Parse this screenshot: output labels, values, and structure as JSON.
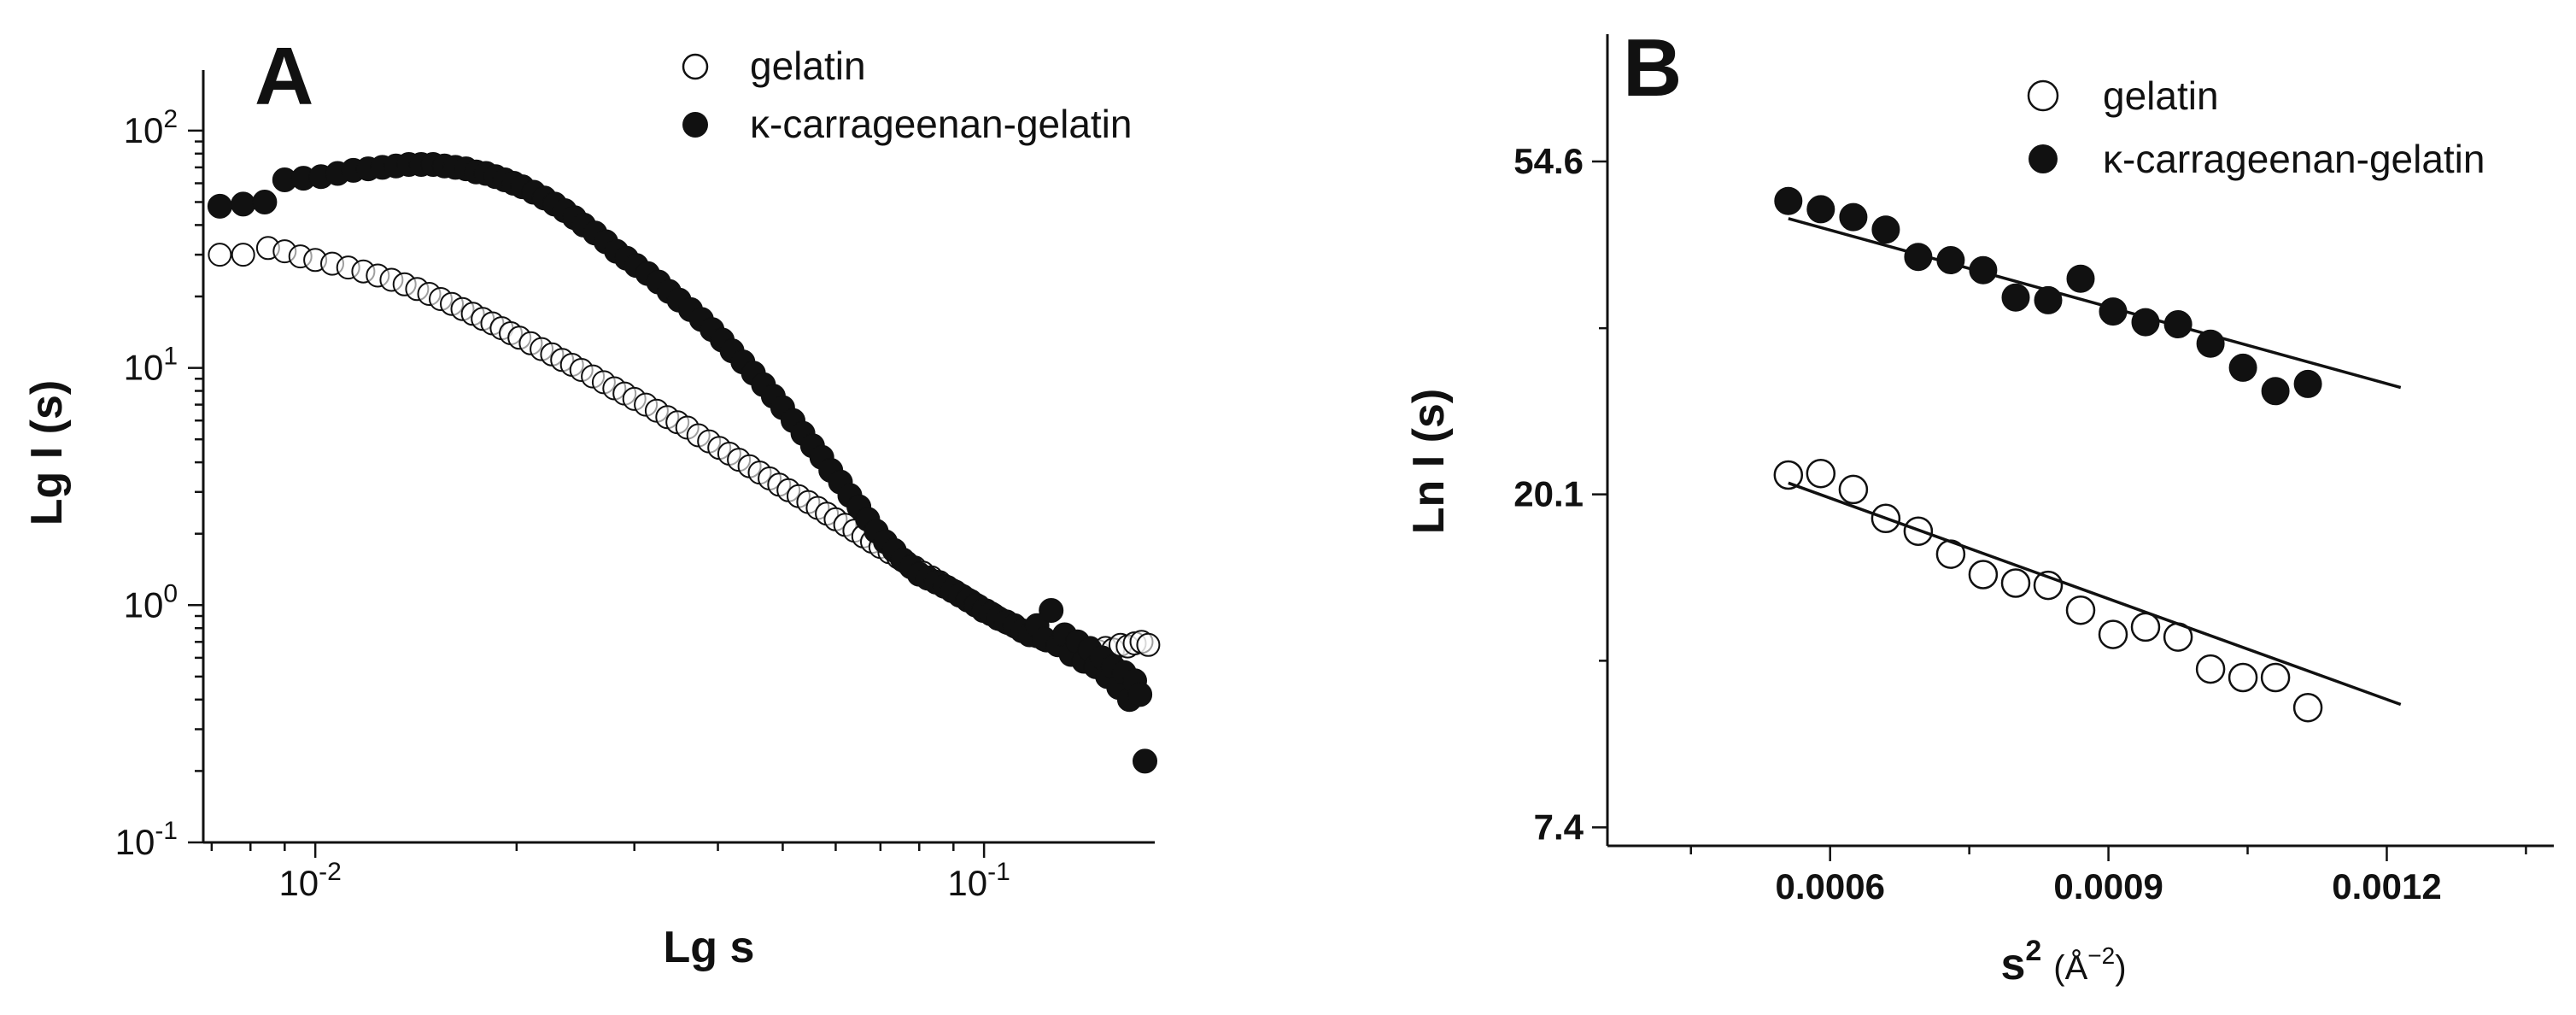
{
  "chart_data": [
    {
      "panel_label": "A",
      "type": "scatter",
      "xlabel": "Lg s",
      "ylabel": "Lg I (s)",
      "x_scale": "log",
      "y_scale": "log",
      "xlim": [
        0.0068,
        0.18
      ],
      "ylim": [
        0.1,
        180
      ],
      "x_ticks": [
        {
          "value": 0.01,
          "base": "10",
          "exp": "-2"
        },
        {
          "value": 0.1,
          "base": "10",
          "exp": "-1"
        }
      ],
      "y_ticks": [
        {
          "value": 0.1,
          "base": "10",
          "exp": "-1"
        },
        {
          "value": 1,
          "base": "10",
          "exp": "0"
        },
        {
          "value": 10,
          "base": "10",
          "exp": "1"
        },
        {
          "value": 100,
          "base": "10",
          "exp": "2"
        }
      ],
      "legend_position": "top-right",
      "series": [
        {
          "name": "gelatin",
          "marker": "open-circle",
          "points": [
            [
              0.0072,
              30
            ],
            [
              0.0078,
              30
            ],
            [
              0.0085,
              32
            ],
            [
              0.009,
              31
            ],
            [
              0.0095,
              29.5
            ],
            [
              0.01,
              28.5
            ],
            [
              0.0106,
              27.5
            ],
            [
              0.0112,
              26.5
            ],
            [
              0.0118,
              25.5
            ],
            [
              0.0124,
              24.5
            ],
            [
              0.013,
              23.5
            ],
            [
              0.0136,
              22.5
            ],
            [
              0.0142,
              21.5
            ],
            [
              0.0148,
              20.5
            ],
            [
              0.0154,
              19.5
            ],
            [
              0.016,
              18.6
            ],
            [
              0.0166,
              17.7
            ],
            [
              0.0172,
              16.9
            ],
            [
              0.0178,
              16.1
            ],
            [
              0.0184,
              15.4
            ],
            [
              0.019,
              14.7
            ],
            [
              0.0196,
              14.0
            ],
            [
              0.0202,
              13.4
            ],
            [
              0.021,
              12.7
            ],
            [
              0.0218,
              12.0
            ],
            [
              0.0226,
              11.4
            ],
            [
              0.0234,
              10.8
            ],
            [
              0.0242,
              10.3
            ],
            [
              0.025,
              9.8
            ],
            [
              0.026,
              9.2
            ],
            [
              0.027,
              8.7
            ],
            [
              0.028,
              8.2
            ],
            [
              0.029,
              7.8
            ],
            [
              0.03,
              7.4
            ],
            [
              0.0312,
              7.0
            ],
            [
              0.0324,
              6.6
            ],
            [
              0.0336,
              6.2
            ],
            [
              0.0348,
              5.9
            ],
            [
              0.036,
              5.6
            ],
            [
              0.0374,
              5.2
            ],
            [
              0.0388,
              4.9
            ],
            [
              0.0402,
              4.6
            ],
            [
              0.0416,
              4.35
            ],
            [
              0.043,
              4.1
            ],
            [
              0.0446,
              3.85
            ],
            [
              0.0462,
              3.62
            ],
            [
              0.0478,
              3.42
            ],
            [
              0.0494,
              3.22
            ],
            [
              0.051,
              3.05
            ],
            [
              0.0528,
              2.88
            ],
            [
              0.0546,
              2.72
            ],
            [
              0.0564,
              2.57
            ],
            [
              0.0582,
              2.43
            ],
            [
              0.06,
              2.3
            ],
            [
              0.062,
              2.18
            ],
            [
              0.064,
              2.06
            ],
            [
              0.066,
              1.95
            ],
            [
              0.068,
              1.85
            ],
            [
              0.07,
              1.76
            ],
            [
              0.0722,
              1.67
            ],
            [
              0.0744,
              1.59
            ],
            [
              0.0766,
              1.51
            ],
            [
              0.0788,
              1.44
            ],
            [
              0.081,
              1.37
            ],
            [
              0.0834,
              1.31
            ],
            [
              0.0858,
              1.25
            ],
            [
              0.0882,
              1.19
            ],
            [
              0.0906,
              1.14
            ],
            [
              0.093,
              1.09
            ],
            [
              0.0956,
              1.04
            ],
            [
              0.0982,
              0.99
            ],
            [
              0.1008,
              0.95
            ],
            [
              0.1034,
              0.91
            ],
            [
              0.106,
              0.87
            ],
            [
              0.1088,
              0.84
            ],
            [
              0.1116,
              0.81
            ],
            [
              0.1144,
              0.78
            ],
            [
              0.1172,
              0.76
            ],
            [
              0.12,
              0.74
            ],
            [
              0.124,
              0.71
            ],
            [
              0.128,
              0.69
            ],
            [
              0.132,
              0.67
            ],
            [
              0.136,
              0.66
            ],
            [
              0.14,
              0.65
            ],
            [
              0.144,
              0.66
            ],
            [
              0.148,
              0.64
            ],
            [
              0.152,
              0.66
            ],
            [
              0.156,
              0.65
            ],
            [
              0.16,
              0.68
            ],
            [
              0.164,
              0.67
            ],
            [
              0.168,
              0.69
            ],
            [
              0.172,
              0.7
            ],
            [
              0.176,
              0.68
            ]
          ]
        },
        {
          "name": "κ-carrageenan-gelatin",
          "marker": "filled-circle",
          "points": [
            [
              0.0072,
              48
            ],
            [
              0.0078,
              49
            ],
            [
              0.0084,
              50
            ],
            [
              0.009,
              62
            ],
            [
              0.0096,
              63
            ],
            [
              0.0102,
              64
            ],
            [
              0.0108,
              66
            ],
            [
              0.0114,
              68
            ],
            [
              0.012,
              69
            ],
            [
              0.0126,
              70
            ],
            [
              0.0132,
              71
            ],
            [
              0.0138,
              72
            ],
            [
              0.0144,
              72
            ],
            [
              0.015,
              72
            ],
            [
              0.0156,
              71
            ],
            [
              0.0162,
              70
            ],
            [
              0.0168,
              69
            ],
            [
              0.0174,
              67
            ],
            [
              0.018,
              66
            ],
            [
              0.0186,
              64
            ],
            [
              0.0192,
              62
            ],
            [
              0.0198,
              60
            ],
            [
              0.0204,
              58
            ],
            [
              0.0212,
              55
            ],
            [
              0.022,
              52
            ],
            [
              0.0228,
              49
            ],
            [
              0.0236,
              46
            ],
            [
              0.0244,
              43
            ],
            [
              0.0252,
              40
            ],
            [
              0.0262,
              37
            ],
            [
              0.0272,
              34
            ],
            [
              0.0282,
              31
            ],
            [
              0.0292,
              29
            ],
            [
              0.0302,
              27
            ],
            [
              0.0314,
              25
            ],
            [
              0.0326,
              23
            ],
            [
              0.0338,
              21
            ],
            [
              0.035,
              19.3
            ],
            [
              0.0364,
              17.6
            ],
            [
              0.0378,
              16
            ],
            [
              0.0392,
              14.5
            ],
            [
              0.0406,
              13.1
            ],
            [
              0.042,
              11.8
            ],
            [
              0.0436,
              10.6
            ],
            [
              0.0452,
              9.5
            ],
            [
              0.0468,
              8.5
            ],
            [
              0.0484,
              7.6
            ],
            [
              0.05,
              6.8
            ],
            [
              0.0518,
              6.0
            ],
            [
              0.0536,
              5.3
            ],
            [
              0.0554,
              4.7
            ],
            [
              0.0572,
              4.2
            ],
            [
              0.059,
              3.7
            ],
            [
              0.061,
              3.3
            ],
            [
              0.063,
              2.9
            ],
            [
              0.065,
              2.6
            ],
            [
              0.067,
              2.3
            ],
            [
              0.069,
              2.05
            ],
            [
              0.0712,
              1.85
            ],
            [
              0.0734,
              1.7
            ],
            [
              0.0756,
              1.55
            ],
            [
              0.0778,
              1.45
            ],
            [
              0.08,
              1.35
            ],
            [
              0.0824,
              1.3
            ],
            [
              0.0848,
              1.25
            ],
            [
              0.0872,
              1.2
            ],
            [
              0.0896,
              1.15
            ],
            [
              0.092,
              1.1
            ],
            [
              0.0946,
              1.05
            ],
            [
              0.0972,
              1.0
            ],
            [
              0.0998,
              0.95
            ],
            [
              0.1024,
              0.92
            ],
            [
              0.105,
              0.88
            ],
            [
              0.108,
              0.85
            ],
            [
              0.111,
              0.82
            ],
            [
              0.114,
              0.78
            ],
            [
              0.117,
              0.75
            ],
            [
              0.12,
              0.82
            ],
            [
              0.123,
              0.72
            ],
            [
              0.126,
              0.95
            ],
            [
              0.129,
              0.68
            ],
            [
              0.132,
              0.75
            ],
            [
              0.135,
              0.62
            ],
            [
              0.138,
              0.7
            ],
            [
              0.141,
              0.58
            ],
            [
              0.144,
              0.65
            ],
            [
              0.147,
              0.55
            ],
            [
              0.15,
              0.6
            ],
            [
              0.153,
              0.5
            ],
            [
              0.156,
              0.55
            ],
            [
              0.159,
              0.45
            ],
            [
              0.162,
              0.52
            ],
            [
              0.165,
              0.4
            ],
            [
              0.168,
              0.48
            ],
            [
              0.171,
              0.42
            ],
            [
              0.174,
              0.22
            ]
          ]
        }
      ]
    },
    {
      "panel_label": "B",
      "type": "scatter",
      "xlabel": "s",
      "xlabel_sup": "2",
      "xlabel_unit": "(Å",
      "xlabel_unit_sup": "−2",
      "xlabel_unit_close": ")",
      "ylabel": "Ln I (s)",
      "y_scale": "ln",
      "xlim": [
        0.00036,
        0.00138
      ],
      "ylim": [
        7.0,
        80
      ],
      "x_ticks": [
        {
          "value": 0.0006,
          "label": "0.0006"
        },
        {
          "value": 0.0009,
          "label": "0.0009"
        },
        {
          "value": 0.0012,
          "label": "0.0012"
        }
      ],
      "y_ticks": [
        {
          "value": 7.4,
          "label": "7.4"
        },
        {
          "value": 20.1,
          "label": "20.1"
        },
        {
          "value": 54.6,
          "label": "54.6"
        }
      ],
      "legend_position": "top-right",
      "series": [
        {
          "name": "gelatin",
          "marker": "open-circle",
          "points": [
            [
              0.000555,
              21.3
            ],
            [
              0.00059,
              21.4
            ],
            [
              0.000625,
              20.4
            ],
            [
              0.00066,
              18.7
            ],
            [
              0.000695,
              18.0
            ],
            [
              0.00073,
              16.8
            ],
            [
              0.000765,
              15.8
            ],
            [
              0.0008,
              15.4
            ],
            [
              0.000835,
              15.3
            ],
            [
              0.00087,
              14.2
            ],
            [
              0.000905,
              13.2
            ],
            [
              0.00094,
              13.5
            ],
            [
              0.000975,
              13.1
            ],
            [
              0.00101,
              11.9
            ],
            [
              0.001045,
              11.6
            ],
            [
              0.00108,
              11.6
            ],
            [
              0.001115,
              10.6
            ]
          ],
          "fit": {
            "x": [
              0.000555,
              0.001215
            ],
            "y": [
              20.8,
              10.7
            ]
          }
        },
        {
          "name": "κ-carrageenan-gelatin",
          "marker": "filled-circle",
          "points": [
            [
              0.000555,
              48.5
            ],
            [
              0.00059,
              47.3
            ],
            [
              0.000625,
              46.2
            ],
            [
              0.00066,
              44.5
            ],
            [
              0.000695,
              41.0
            ],
            [
              0.00073,
              40.6
            ],
            [
              0.000765,
              39.4
            ],
            [
              0.0008,
              36.3
            ],
            [
              0.000835,
              36.0
            ],
            [
              0.00087,
              38.4
            ],
            [
              0.000905,
              34.8
            ],
            [
              0.00094,
              33.7
            ],
            [
              0.000975,
              33.5
            ],
            [
              0.00101,
              31.6
            ],
            [
              0.001045,
              29.4
            ],
            [
              0.00108,
              27.4
            ],
            [
              0.001115,
              28.0
            ]
          ],
          "fit": {
            "x": [
              0.000555,
              0.001215
            ],
            "y": [
              46.0,
              27.7
            ]
          }
        }
      ]
    }
  ]
}
